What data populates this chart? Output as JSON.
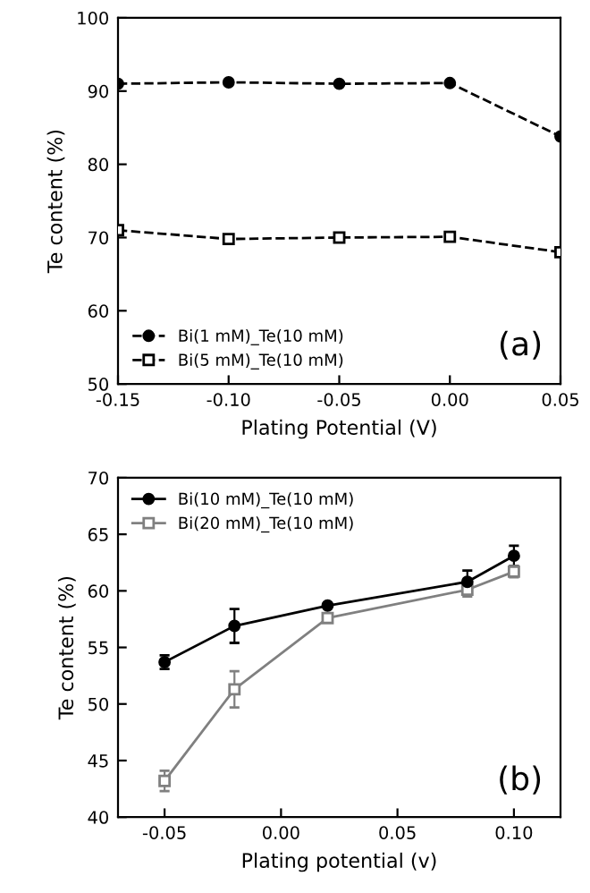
{
  "chart_data": [
    {
      "type": "line",
      "xlabel": "Plating Potential (V)",
      "ylabel": "Te content (%)",
      "x": [
        -0.15,
        -0.1,
        -0.05,
        0.0,
        0.05
      ],
      "xlim": [
        -0.15,
        0.05
      ],
      "xticks": [
        {
          "value": -0.15,
          "label": "-0.15"
        },
        {
          "value": -0.1,
          "label": "-0.10"
        },
        {
          "value": -0.05,
          "label": "-0.05"
        },
        {
          "value": 0.0,
          "label": "0.00"
        },
        {
          "value": 0.05,
          "label": "0.05"
        }
      ],
      "ylim": [
        50,
        100
      ],
      "yticks": [
        50,
        60,
        70,
        80,
        90,
        100
      ],
      "line_style": "dashed",
      "legend": "bottom left",
      "grid": false,
      "annotations": [
        "(a)"
      ],
      "series": [
        {
          "name": "Bi(1 mM)_Te(10 mM)",
          "color": "#000000",
          "marker": "circle",
          "values": [
            91,
            91.2,
            91,
            91.1,
            83.8
          ]
        },
        {
          "name": "Bi(5 mM)_Te(10 mM)",
          "color": "#000000",
          "marker": "square",
          "values": [
            71,
            69.8,
            70,
            70.1,
            68
          ]
        }
      ]
    },
    {
      "type": "line",
      "xlabel": "Plating potential (v)",
      "ylabel": "Te content (%)",
      "x": [
        -0.05,
        -0.02,
        0.02,
        0.08,
        0.1
      ],
      "xlim": [
        -0.07,
        0.12
      ],
      "xticks": [
        {
          "value": -0.05,
          "label": "-0.05"
        },
        {
          "value": 0.0,
          "label": "0.00"
        },
        {
          "value": 0.05,
          "label": "0.05"
        },
        {
          "value": 0.1,
          "label": "0.10"
        }
      ],
      "ylim": [
        40,
        70
      ],
      "yticks": [
        40,
        45,
        50,
        55,
        60,
        65,
        70
      ],
      "line_style": "solid",
      "legend": "top left",
      "grid": false,
      "annotations": [
        "(b)"
      ],
      "series": [
        {
          "name": "Bi(10 mM)_Te(10 mM)",
          "color": "#000000",
          "marker": "circle",
          "values": [
            53.7,
            56.9,
            58.7,
            60.8,
            63.1
          ],
          "errors": [
            0.6,
            1.5,
            0.2,
            1,
            0.9
          ]
        },
        {
          "name": "Bi(20 mM)_Te(10 mM)",
          "color": "#808080",
          "marker": "square",
          "values": [
            43.2,
            51.3,
            57.6,
            60.1,
            61.7
          ],
          "errors": [
            0.9,
            1.6,
            0.2,
            0.6,
            0.5
          ]
        }
      ]
    }
  ]
}
